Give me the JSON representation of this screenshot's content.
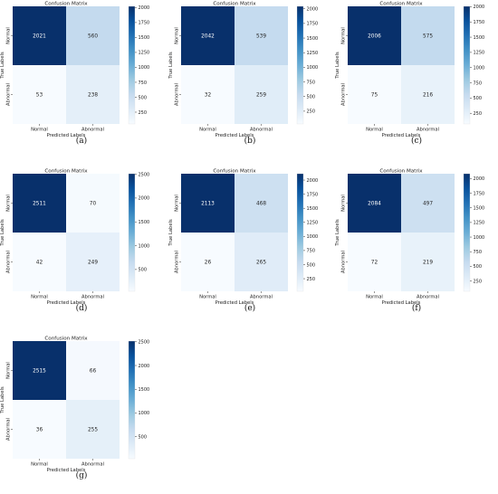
{
  "chart_data": [
    {
      "type": "heatmap",
      "caption": "(a)",
      "title": "Confusion Matrix",
      "xlabel": "Predicted Labels",
      "ylabel": "True Labels",
      "x_categories": [
        "Normal",
        "Abnormal"
      ],
      "y_categories": [
        "Normal",
        "Abnormal"
      ],
      "values": [
        [
          2021,
          560
        ],
        [
          53,
          238
        ]
      ],
      "colorbar_ticks": [
        250,
        500,
        750,
        1000,
        1250,
        1500,
        1750,
        2000
      ],
      "vmin": 53,
      "vmax": 2021,
      "colormap": [
        "#f7fbff",
        "#deebf7",
        "#c6dbef",
        "#9ecae1",
        "#6baed6",
        "#4292c6",
        "#2171b5",
        "#08519c",
        "#08306b"
      ]
    },
    {
      "type": "heatmap",
      "caption": "(b)",
      "title": "Confusion Matrix",
      "xlabel": "Predicted Labels",
      "ylabel": "True Labels",
      "x_categories": [
        "Normal",
        "Abnormal"
      ],
      "y_categories": [
        "Normal",
        "Abnormal"
      ],
      "values": [
        [
          2042,
          539
        ],
        [
          32,
          259
        ]
      ],
      "colorbar_ticks": [
        250,
        500,
        750,
        1000,
        1250,
        1500,
        1750,
        2000
      ],
      "vmin": 32,
      "vmax": 2042,
      "colormap": [
        "#f7fbff",
        "#deebf7",
        "#c6dbef",
        "#9ecae1",
        "#6baed6",
        "#4292c6",
        "#2171b5",
        "#08519c",
        "#08306b"
      ]
    },
    {
      "type": "heatmap",
      "caption": "(c)",
      "title": "Confusion Matrix",
      "xlabel": "Predicted Labels",
      "ylabel": "True Labels",
      "x_categories": [
        "Normal",
        "Abnormal"
      ],
      "y_categories": [
        "Normal",
        "Abnormal"
      ],
      "values": [
        [
          2006,
          575
        ],
        [
          75,
          216
        ]
      ],
      "colorbar_ticks": [
        250,
        500,
        750,
        1000,
        1250,
        1500,
        1750,
        2000
      ],
      "vmin": 75,
      "vmax": 2006,
      "colormap": [
        "#f7fbff",
        "#deebf7",
        "#c6dbef",
        "#9ecae1",
        "#6baed6",
        "#4292c6",
        "#2171b5",
        "#08519c",
        "#08306b"
      ]
    },
    {
      "type": "heatmap",
      "caption": "(d)",
      "title": "Confusion Matrix",
      "xlabel": "Predicted Labels",
      "ylabel": "True Labels",
      "x_categories": [
        "Normal",
        "Abnormal"
      ],
      "y_categories": [
        "Normal",
        "Abnormal"
      ],
      "values": [
        [
          2511,
          70
        ],
        [
          42,
          249
        ]
      ],
      "colorbar_ticks": [
        500,
        1000,
        1500,
        2000,
        2500
      ],
      "vmin": 42,
      "vmax": 2511,
      "colormap": [
        "#f7fbff",
        "#deebf7",
        "#c6dbef",
        "#9ecae1",
        "#6baed6",
        "#4292c6",
        "#2171b5",
        "#08519c",
        "#08306b"
      ]
    },
    {
      "type": "heatmap",
      "caption": "(e)",
      "title": "Confusion Matrix",
      "xlabel": "Predicted Labels",
      "ylabel": "True Labels",
      "x_categories": [
        "Normal",
        "Abnormal"
      ],
      "y_categories": [
        "Normal",
        "Abnormal"
      ],
      "values": [
        [
          2113,
          468
        ],
        [
          26,
          265
        ]
      ],
      "colorbar_ticks": [
        250,
        500,
        750,
        1000,
        1250,
        1500,
        1750,
        2000
      ],
      "vmin": 26,
      "vmax": 2113,
      "colormap": [
        "#f7fbff",
        "#deebf7",
        "#c6dbef",
        "#9ecae1",
        "#6baed6",
        "#4292c6",
        "#2171b5",
        "#08519c",
        "#08306b"
      ]
    },
    {
      "type": "heatmap",
      "caption": "(f)",
      "title": "Confusion Matrix",
      "xlabel": "Predicted Labels",
      "ylabel": "True Labels",
      "x_categories": [
        "Normal",
        "Abnormal"
      ],
      "y_categories": [
        "Normal",
        "Abnormal"
      ],
      "values": [
        [
          2084,
          497
        ],
        [
          72,
          219
        ]
      ],
      "colorbar_ticks": [
        250,
        500,
        750,
        1000,
        1250,
        1500,
        1750,
        2000
      ],
      "vmin": 72,
      "vmax": 2084,
      "colormap": [
        "#f7fbff",
        "#deebf7",
        "#c6dbef",
        "#9ecae1",
        "#6baed6",
        "#4292c6",
        "#2171b5",
        "#08519c",
        "#08306b"
      ]
    },
    {
      "type": "heatmap",
      "caption": "(g)",
      "title": "Confusion Matrix",
      "xlabel": "Predicted Labels",
      "ylabel": "True Labels",
      "x_categories": [
        "Normal",
        "Abnormal"
      ],
      "y_categories": [
        "Normal",
        "Abnormal"
      ],
      "values": [
        [
          2515,
          66
        ],
        [
          36,
          255
        ]
      ],
      "colorbar_ticks": [
        500,
        1000,
        1500,
        2000,
        2500
      ],
      "vmin": 36,
      "vmax": 2515,
      "colormap": [
        "#f7fbff",
        "#deebf7",
        "#c6dbef",
        "#9ecae1",
        "#6baed6",
        "#4292c6",
        "#2171b5",
        "#08519c",
        "#08306b"
      ]
    }
  ]
}
